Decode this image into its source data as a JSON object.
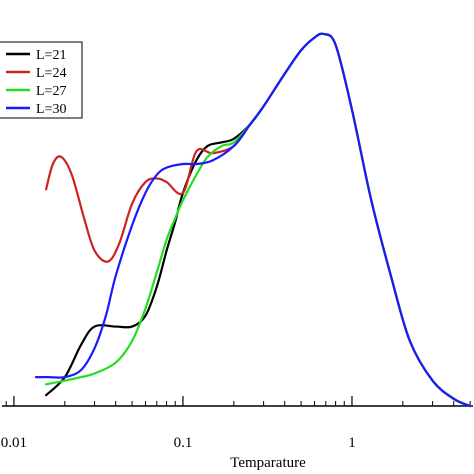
{
  "chart_data": {
    "type": "line",
    "title": "",
    "xlabel": "Temparature",
    "ylabel": "",
    "xscale": "log",
    "xlim": [
      0.0085,
      5.2
    ],
    "ylim": [
      0,
      1
    ],
    "grid": false,
    "legend_position": "top-left",
    "x_ticks": [
      {
        "value": 0.01,
        "label": "0.01"
      },
      {
        "value": 0.1,
        "label": "0.1"
      },
      {
        "value": 1,
        "label": "1"
      }
    ],
    "series": [
      {
        "name": "L=21",
        "color": "#000000",
        "x": [
          0.0155,
          0.02,
          0.025,
          0.03,
          0.04,
          0.05,
          0.06,
          0.07,
          0.08,
          0.09,
          0.1,
          0.12,
          0.14,
          0.17,
          0.2,
          0.25,
          0.3,
          0.4,
          0.5,
          0.6,
          0.68,
          0.8,
          1.0,
          1.3,
          1.7,
          2.2,
          3.0,
          4.0,
          5.0
        ],
        "y": [
          0.03,
          0.08,
          0.17,
          0.22,
          0.22,
          0.22,
          0.25,
          0.33,
          0.43,
          0.51,
          0.59,
          0.68,
          0.72,
          0.73,
          0.74,
          0.78,
          0.83,
          0.92,
          0.985,
          1.02,
          1.03,
          1.0,
          0.82,
          0.57,
          0.36,
          0.18,
          0.07,
          0.02,
          0.0
        ]
      },
      {
        "name": "L=24",
        "color": "#cc2222",
        "x": [
          0.0155,
          0.017,
          0.019,
          0.022,
          0.026,
          0.03,
          0.036,
          0.042,
          0.05,
          0.06,
          0.07,
          0.08,
          0.1,
          0.12,
          0.15,
          0.2,
          0.25,
          0.3,
          0.4,
          0.5,
          0.6,
          0.68,
          0.8,
          1.0,
          1.3,
          1.7,
          2.2,
          3.0,
          4.0,
          5.0
        ],
        "y": [
          0.6,
          0.67,
          0.69,
          0.64,
          0.52,
          0.43,
          0.4,
          0.45,
          0.56,
          0.62,
          0.63,
          0.62,
          0.59,
          0.705,
          0.7,
          0.72,
          0.78,
          0.83,
          0.92,
          0.985,
          1.02,
          1.03,
          1.0,
          0.82,
          0.57,
          0.36,
          0.18,
          0.07,
          0.02,
          0.0
        ]
      },
      {
        "name": "L=27",
        "color": "#22dd22",
        "x": [
          0.0155,
          0.02,
          0.025,
          0.03,
          0.04,
          0.05,
          0.06,
          0.07,
          0.08,
          0.09,
          0.1,
          0.12,
          0.14,
          0.17,
          0.2,
          0.25,
          0.3,
          0.4,
          0.5,
          0.6,
          0.68,
          0.8,
          1.0,
          1.3,
          1.7,
          2.2,
          3.0,
          4.0,
          5.0
        ],
        "y": [
          0.06,
          0.07,
          0.08,
          0.09,
          0.12,
          0.18,
          0.27,
          0.37,
          0.46,
          0.52,
          0.57,
          0.64,
          0.69,
          0.72,
          0.73,
          0.78,
          0.83,
          0.92,
          0.985,
          1.02,
          1.03,
          1.0,
          0.82,
          0.57,
          0.36,
          0.18,
          0.07,
          0.02,
          0.0
        ]
      },
      {
        "name": "L=30",
        "color": "#1a1aff",
        "x": [
          0.0135,
          0.016,
          0.02,
          0.025,
          0.03,
          0.035,
          0.04,
          0.05,
          0.06,
          0.07,
          0.08,
          0.1,
          0.12,
          0.15,
          0.2,
          0.25,
          0.3,
          0.4,
          0.5,
          0.6,
          0.68,
          0.8,
          1.0,
          1.3,
          1.7,
          2.2,
          3.0,
          4.0,
          5.0
        ],
        "y": [
          0.08,
          0.08,
          0.08,
          0.1,
          0.16,
          0.25,
          0.36,
          0.5,
          0.59,
          0.64,
          0.66,
          0.67,
          0.67,
          0.68,
          0.72,
          0.78,
          0.83,
          0.92,
          0.985,
          1.02,
          1.03,
          1.0,
          0.82,
          0.57,
          0.36,
          0.18,
          0.07,
          0.02,
          0.0
        ]
      }
    ]
  }
}
